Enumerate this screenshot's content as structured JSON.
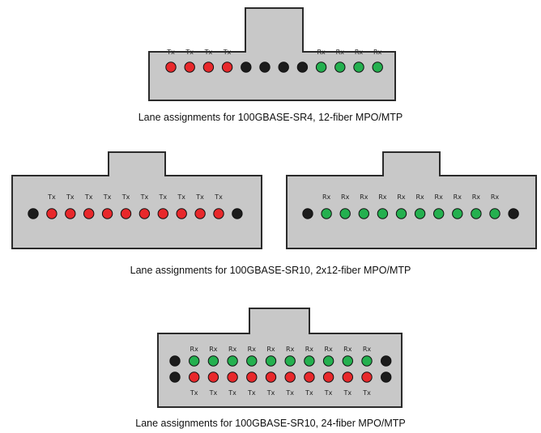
{
  "colors": {
    "connector_fill": "#c8c8c8",
    "connector_stroke": "#2b2b2b",
    "tx": "#e8282b",
    "rx": "#24b04f",
    "unused": "#1c1c1c"
  },
  "captions": {
    "sr4": "Lane assignments for 100GBASE-SR4, 12-fiber MPO/MTP",
    "sr10_2x12": "Lane assignments for 100GBASE-SR10, 2x12-fiber MPO/MTP",
    "sr10_24": "Lane assignments for 100GBASE-SR10, 24-fiber MPO/MTP"
  },
  "labels": {
    "tx": "Tx",
    "rx": "Rx"
  },
  "connectors": [
    {
      "id": "sr4-connector",
      "rows": [
        [
          "tx",
          "tx",
          "tx",
          "tx",
          "unused",
          "unused",
          "unused",
          "unused",
          "rx",
          "rx",
          "rx",
          "rx"
        ]
      ]
    },
    {
      "id": "sr10-tx-connector",
      "rows": [
        [
          "unused",
          "tx",
          "tx",
          "tx",
          "tx",
          "tx",
          "tx",
          "tx",
          "tx",
          "tx",
          "tx",
          "unused"
        ]
      ]
    },
    {
      "id": "sr10-rx-connector",
      "rows": [
        [
          "unused",
          "rx",
          "rx",
          "rx",
          "rx",
          "rx",
          "rx",
          "rx",
          "rx",
          "rx",
          "rx",
          "unused"
        ]
      ]
    },
    {
      "id": "sr10-24-connector",
      "rows": [
        [
          "unused",
          "rx",
          "rx",
          "rx",
          "rx",
          "rx",
          "rx",
          "rx",
          "rx",
          "rx",
          "rx",
          "unused"
        ],
        [
          "unused",
          "tx",
          "tx",
          "tx",
          "tx",
          "tx",
          "tx",
          "tx",
          "tx",
          "tx",
          "tx",
          "unused"
        ]
      ]
    }
  ]
}
